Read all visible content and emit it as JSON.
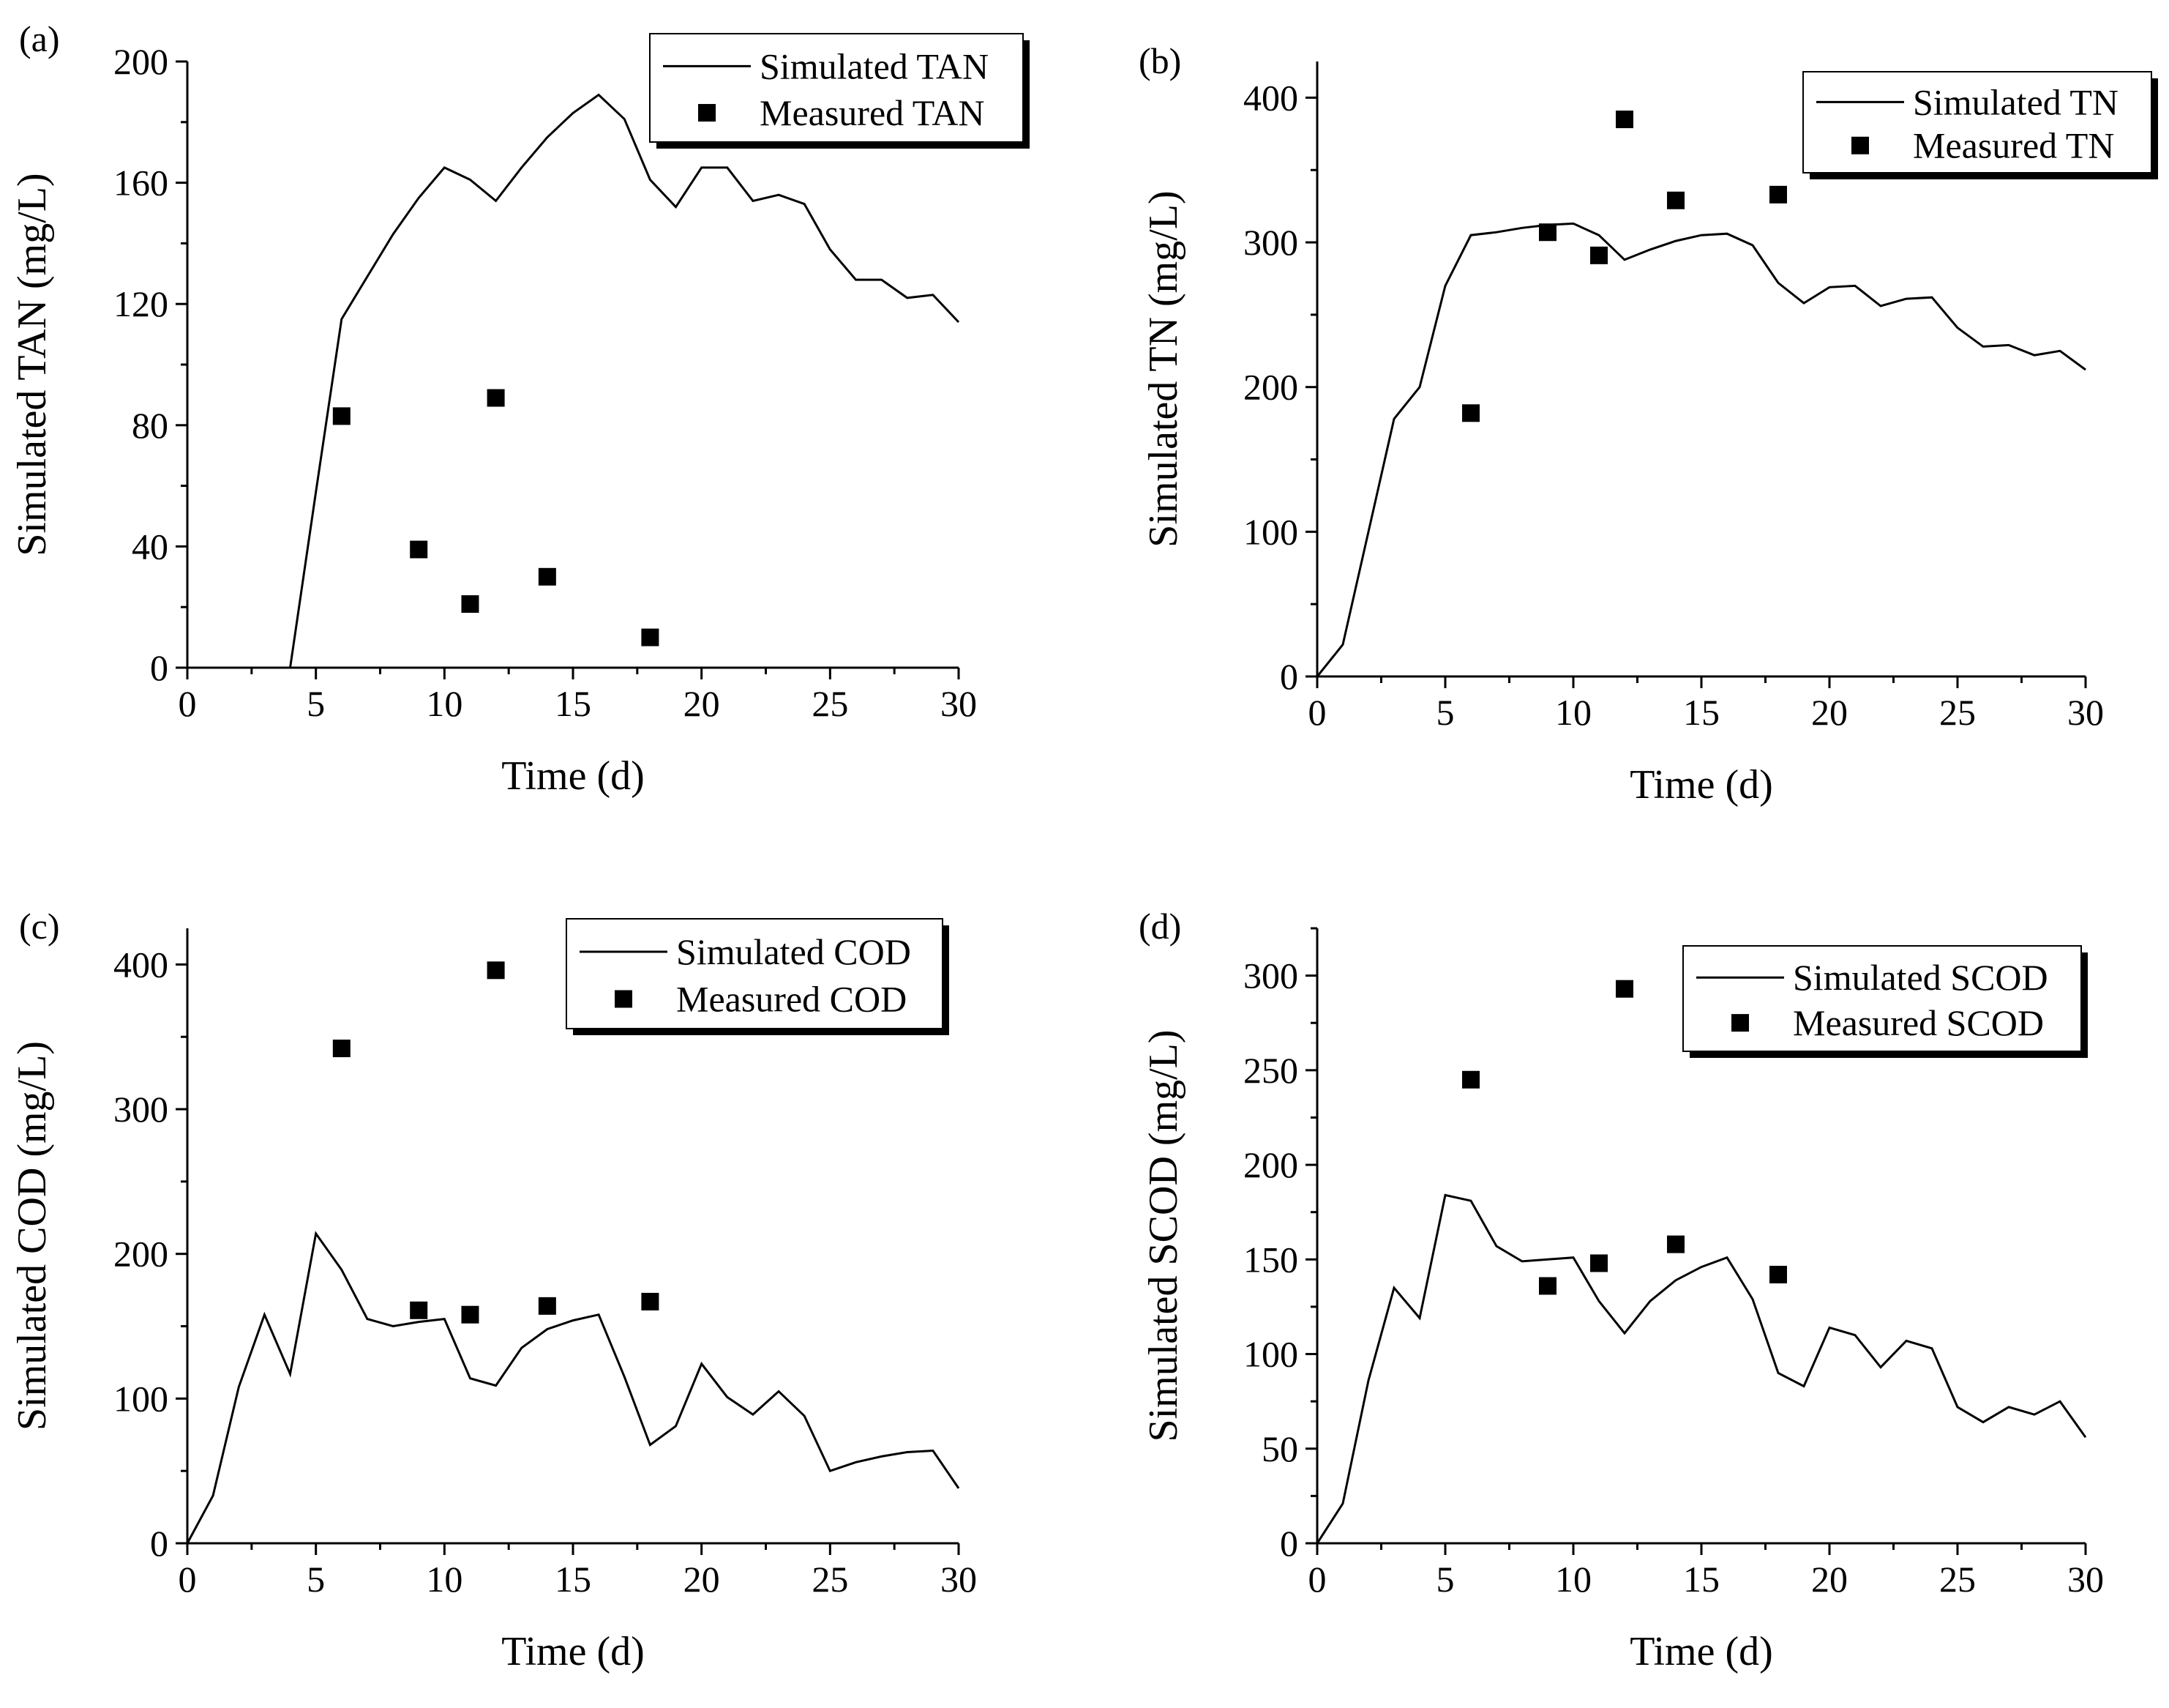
{
  "chart_data": [
    {
      "type": "line",
      "panel_label": "(a)",
      "xlabel": "Time (d)",
      "ylabel": "Simulated TAN (mg/L)",
      "xlim": [
        0,
        30
      ],
      "ylim": [
        0,
        200
      ],
      "xticks": [
        0,
        5,
        10,
        15,
        20,
        25,
        30
      ],
      "yticks": [
        0,
        40,
        80,
        120,
        160,
        200
      ],
      "legend_position": "top-right",
      "series": [
        {
          "name": "Simulated TAN",
          "style": "line",
          "x": [
            0,
            1,
            2,
            3,
            4,
            5,
            6,
            7,
            8,
            9,
            10,
            11,
            12,
            13,
            14,
            15,
            16,
            17,
            18,
            19,
            20,
            21,
            22,
            23,
            24,
            25,
            26,
            27,
            28,
            29,
            30
          ],
          "y": [
            0,
            0,
            0,
            0,
            0,
            58,
            115,
            129,
            143,
            155,
            165,
            161,
            154,
            165,
            175,
            183,
            189,
            181,
            161,
            152,
            165,
            165,
            154,
            156,
            153,
            138,
            128,
            128,
            122,
            123,
            114
          ]
        },
        {
          "name": "Measured TAN",
          "style": "marker",
          "x": [
            6,
            9,
            11,
            12,
            14,
            18
          ],
          "y": [
            83,
            39,
            21,
            89,
            30,
            10
          ]
        }
      ]
    },
    {
      "type": "line",
      "panel_label": "(b)",
      "xlabel": "Time (d)",
      "ylabel": "Simulated TN (mg/L)",
      "xlim": [
        0,
        30
      ],
      "ylim": [
        0,
        425
      ],
      "xticks": [
        0,
        5,
        10,
        15,
        20,
        25,
        30
      ],
      "yticks": [
        0,
        100,
        200,
        300,
        400
      ],
      "legend_position": "top-right",
      "series": [
        {
          "name": "Simulated TN",
          "style": "line",
          "x": [
            0,
            1,
            2,
            3,
            4,
            5,
            6,
            7,
            8,
            9,
            10,
            11,
            12,
            13,
            14,
            15,
            16,
            17,
            18,
            19,
            20,
            21,
            22,
            23,
            24,
            25,
            26,
            27,
            28,
            29,
            30
          ],
          "y": [
            0,
            22,
            100,
            178,
            200,
            270,
            305,
            307,
            310,
            312,
            313,
            305,
            288,
            295,
            301,
            305,
            306,
            298,
            272,
            258,
            269,
            270,
            256,
            261,
            262,
            241,
            228,
            229,
            222,
            225,
            212
          ]
        },
        {
          "name": "Measured TN",
          "style": "marker",
          "x": [
            6,
            9,
            11,
            12,
            14,
            18
          ],
          "y": [
            182,
            307,
            291,
            385,
            329,
            333
          ]
        }
      ]
    },
    {
      "type": "line",
      "panel_label": "(c)",
      "xlabel": "Time (d)",
      "ylabel": "Simulated COD (mg/L)",
      "xlim": [
        0,
        30
      ],
      "ylim": [
        0,
        425
      ],
      "xticks": [
        0,
        5,
        10,
        15,
        20,
        25,
        30
      ],
      "yticks": [
        0,
        100,
        200,
        300,
        400
      ],
      "legend_position": "top-right",
      "series": [
        {
          "name": "Simulated COD",
          "style": "line",
          "x": [
            0,
            1,
            2,
            3,
            4,
            5,
            6,
            7,
            8,
            9,
            10,
            11,
            12,
            13,
            14,
            15,
            16,
            17,
            18,
            19,
            20,
            21,
            22,
            23,
            24,
            25,
            26,
            27,
            28,
            29,
            30
          ],
          "y": [
            0,
            33,
            108,
            158,
            117,
            214,
            189,
            155,
            150,
            153,
            155,
            114,
            109,
            135,
            148,
            154,
            158,
            115,
            68,
            81,
            124,
            101,
            89,
            105,
            88,
            50,
            56,
            60,
            63,
            64,
            38
          ]
        },
        {
          "name": "Measured COD",
          "style": "marker",
          "x": [
            6,
            9,
            11,
            12,
            14,
            18
          ],
          "y": [
            342,
            161,
            158,
            396,
            164,
            167
          ]
        }
      ]
    },
    {
      "type": "line",
      "panel_label": "(d)",
      "xlabel": "Time (d)",
      "ylabel": "Simulated SCOD (mg/L)",
      "xlim": [
        0,
        30
      ],
      "ylim": [
        0,
        325
      ],
      "xticks": [
        0,
        5,
        10,
        15,
        20,
        25,
        30
      ],
      "yticks": [
        0,
        50,
        100,
        150,
        200,
        250,
        300
      ],
      "legend_position": "top-right",
      "series": [
        {
          "name": "Simulated SCOD",
          "style": "line",
          "x": [
            0,
            1,
            2,
            3,
            4,
            5,
            6,
            7,
            8,
            9,
            10,
            11,
            12,
            13,
            14,
            15,
            16,
            17,
            18,
            19,
            20,
            21,
            22,
            23,
            24,
            25,
            26,
            27,
            28,
            29,
            30
          ],
          "y": [
            0,
            21,
            86,
            135,
            119,
            184,
            181,
            157,
            149,
            150,
            151,
            128,
            111,
            128,
            139,
            146,
            151,
            129,
            90,
            83,
            114,
            110,
            93,
            107,
            103,
            72,
            64,
            72,
            68,
            75,
            56
          ]
        },
        {
          "name": "Measured SCOD",
          "style": "marker",
          "x": [
            6,
            9,
            11,
            12,
            14,
            18
          ],
          "y": [
            245,
            136,
            148,
            293,
            158,
            142
          ]
        }
      ]
    }
  ]
}
